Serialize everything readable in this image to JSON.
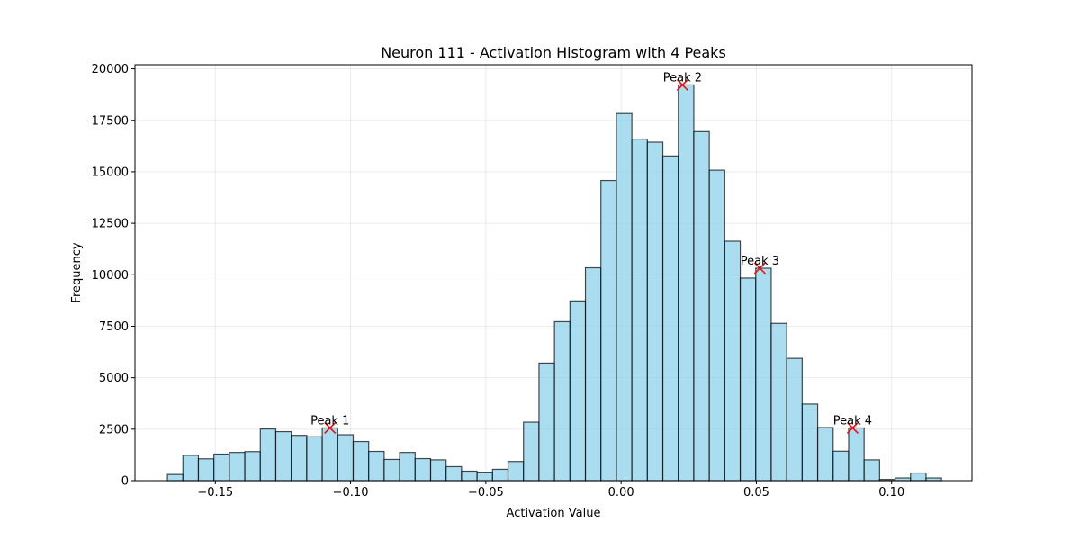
{
  "chart_data": {
    "type": "bar",
    "title": "Neuron 111 - Activation Histogram with 4 Peaks",
    "xlabel": "Activation Value",
    "ylabel": "Frequency",
    "xlim": [
      -0.1797,
      0.1297
    ],
    "ylim": [
      0,
      20200
    ],
    "grid": true,
    "bin_start": -0.1677,
    "bin_width": 0.005723,
    "values": [
      300,
      1230,
      1060,
      1290,
      1370,
      1410,
      2510,
      2380,
      2200,
      2130,
      2560,
      2230,
      1900,
      1420,
      1030,
      1370,
      1070,
      1010,
      680,
      460,
      410,
      550,
      930,
      2840,
      5710,
      7720,
      8730,
      10340,
      14580,
      17830,
      16590,
      16440,
      15770,
      19220,
      16950,
      15080,
      11630,
      9840,
      10320,
      7640,
      5940,
      3720,
      2580,
      1430,
      2560,
      1010,
      60,
      130,
      370,
      130
    ],
    "xticks": [
      -0.15,
      -0.1,
      -0.05,
      0.0,
      0.05,
      0.1
    ],
    "xtick_labels": [
      "−0.15",
      "−0.10",
      "−0.05",
      "0.00",
      "0.05",
      "0.10"
    ],
    "yticks": [
      0,
      2500,
      5000,
      7500,
      10000,
      12500,
      15000,
      17500,
      20000
    ],
    "ytick_labels": [
      "0",
      "2500",
      "5000",
      "7500",
      "10000",
      "12500",
      "15000",
      "17500",
      "20000"
    ],
    "peaks": [
      {
        "label": "Peak 1",
        "x": -0.1076,
        "y": 2560
      },
      {
        "label": "Peak 2",
        "x": 0.0227,
        "y": 19220
      },
      {
        "label": "Peak 3",
        "x": 0.0513,
        "y": 10320
      },
      {
        "label": "Peak 4",
        "x": 0.0856,
        "y": 2560
      }
    ],
    "colors": {
      "bar_fill": "#87ceeb",
      "bar_edge": "#000000",
      "peak_marker": "#ff0000",
      "grid": "#b0b0b0"
    }
  }
}
